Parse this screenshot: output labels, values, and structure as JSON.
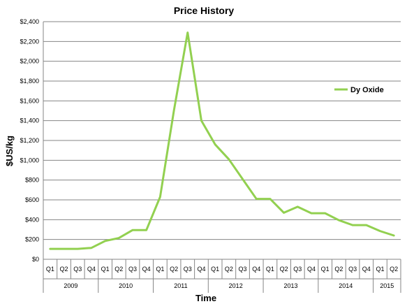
{
  "chart_data": {
    "type": "line",
    "title": "Price History",
    "xlabel": "Time",
    "ylabel": "$US/kg",
    "ylim": [
      0,
      2400
    ],
    "yticks": [
      0,
      200,
      400,
      600,
      800,
      1000,
      1200,
      1400,
      1600,
      1800,
      2000,
      2200,
      2400
    ],
    "ytick_labels": [
      "$0",
      "$200",
      "$400",
      "$600",
      "$800",
      "$1,000",
      "$1,200",
      "$1,400",
      "$1,600",
      "$1,800",
      "$2,000",
      "$2,200",
      "$2,400"
    ],
    "grid": "horizontal",
    "legend_position": "right",
    "categories": [
      "Q1",
      "Q2",
      "Q3",
      "Q4",
      "Q1",
      "Q2",
      "Q3",
      "Q4",
      "Q1",
      "Q2",
      "Q3",
      "Q4",
      "Q1",
      "Q2",
      "Q3",
      "Q4",
      "Q1",
      "Q2",
      "Q3",
      "Q4",
      "Q1",
      "Q2",
      "Q3",
      "Q4",
      "Q1",
      "Q2"
    ],
    "groups": [
      {
        "label": "2009",
        "count": 4
      },
      {
        "label": "2010",
        "count": 4
      },
      {
        "label": "2011",
        "count": 4
      },
      {
        "label": "2012",
        "count": 4
      },
      {
        "label": "2013",
        "count": 4
      },
      {
        "label": "2014",
        "count": 4
      },
      {
        "label": "2015",
        "count": 2
      }
    ],
    "series": [
      {
        "name": "Dy Oxide",
        "color": "#92d050",
        "values": [
          105,
          105,
          105,
          115,
          185,
          215,
          295,
          295,
          630,
          1500,
          2290,
          1400,
          1160,
          1010,
          810,
          610,
          610,
          470,
          530,
          465,
          465,
          395,
          345,
          345,
          285,
          240
        ]
      }
    ]
  }
}
